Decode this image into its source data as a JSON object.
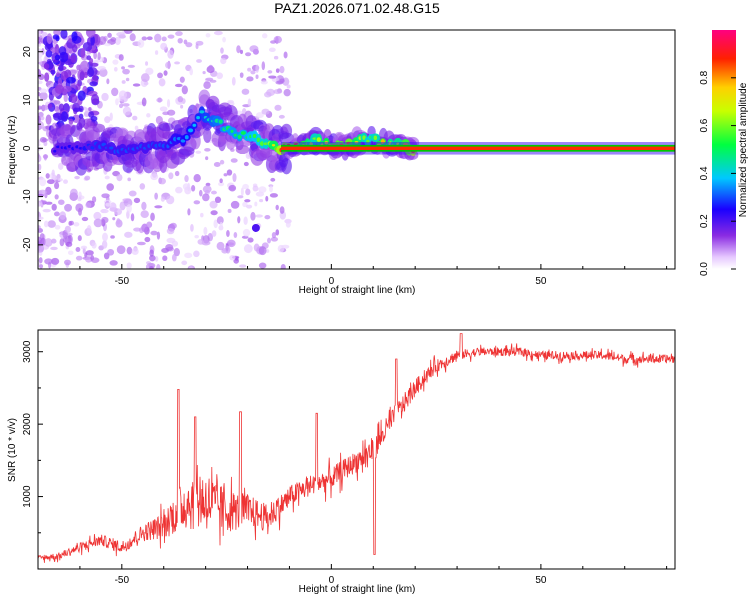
{
  "title": "PAZ1.2026.071.02.48.G15",
  "colors": {
    "snr_line": "#ee3333",
    "base_line_outer": "#00c800",
    "base_line_inner": "#ff2a00",
    "axis": "#000000"
  },
  "chart_data": [
    {
      "type": "heatmap",
      "xlabel": "Height of straight line (km)",
      "ylabel": "Frequency (Hz)",
      "xlim": [
        -70,
        82
      ],
      "ylim": [
        -25,
        24.5
      ],
      "xticks": [
        -50,
        0,
        50
      ],
      "yticks": [
        -20,
        -10,
        0,
        10,
        20
      ],
      "colorbar": {
        "label": "Normalized spectral amplitude",
        "range": [
          0,
          1
        ],
        "ticks": [
          0.0,
          0.2,
          0.4,
          0.6,
          0.8
        ],
        "colormap": "rainbow (white to violet, blue, cyan, green, yellow, red, magenta)"
      },
      "ridge": {
        "description": "dominant frequency trace vs height",
        "x": [
          -60,
          -55,
          -50,
          -45,
          -40,
          -35,
          -31,
          -28,
          -25,
          -22,
          -18,
          -15,
          -12,
          -8,
          -4,
          0,
          4,
          8,
          10,
          12,
          15,
          20,
          30,
          50,
          80
        ],
        "y": [
          0,
          0.5,
          -0.5,
          0,
          0.5,
          2,
          7,
          6,
          4,
          3,
          2,
          0.5,
          0,
          0.5,
          1.5,
          0.5,
          0.5,
          2,
          2,
          1,
          0.5,
          0,
          0,
          0,
          0
        ],
        "amplitude": [
          0.25,
          0.3,
          0.3,
          0.3,
          0.3,
          0.35,
          0.4,
          0.45,
          0.5,
          0.5,
          0.55,
          0.6,
          0.9,
          0.85,
          0.6,
          0.8,
          0.85,
          0.6,
          0.55,
          0.8,
          0.6,
          0.95,
          0.95,
          0.95,
          0.95
        ]
      }
    },
    {
      "type": "line",
      "xlabel": "Height of straight line (km)",
      "ylabel": "SNR (10 * v/v)",
      "xlim": [
        -70,
        82
      ],
      "ylim": [
        0,
        3300
      ],
      "xticks": [
        -50,
        0,
        50
      ],
      "yticks": [
        1000,
        2000,
        3000
      ],
      "series": [
        {
          "x": [
            -70,
            -65,
            -60,
            -55,
            -50,
            -45,
            -40,
            -35,
            -30,
            -25,
            -20,
            -15,
            -10,
            -5,
            0,
            5,
            10,
            15,
            20,
            25,
            30,
            35,
            40,
            45,
            50,
            55,
            60,
            65,
            70,
            75,
            82
          ],
          "y": [
            150,
            180,
            300,
            400,
            300,
            500,
            600,
            900,
            950,
            800,
            800,
            700,
            1000,
            1150,
            1250,
            1450,
            1650,
            2100,
            2500,
            2800,
            2950,
            3000,
            3000,
            3000,
            2950,
            2950,
            2950,
            2950,
            2900,
            2900,
            2900
          ],
          "envelope_spread": [
            60,
            80,
            100,
            130,
            150,
            200,
            300,
            600,
            700,
            500,
            400,
            300,
            250,
            250,
            250,
            250,
            300,
            250,
            200,
            150,
            120,
            100,
            100,
            100,
            100,
            100,
            100,
            100,
            100,
            100,
            100
          ],
          "spikes": [
            {
              "x": -36.5,
              "y": 2480
            },
            {
              "x": -32.5,
              "y": 2100
            },
            {
              "x": -21.7,
              "y": 2170
            },
            {
              "x": -3.5,
              "y": 2150
            },
            {
              "x": 10.3,
              "y": 200
            },
            {
              "x": 15.5,
              "y": 2900
            },
            {
              "x": 31,
              "y": 3250
            }
          ]
        }
      ]
    }
  ]
}
